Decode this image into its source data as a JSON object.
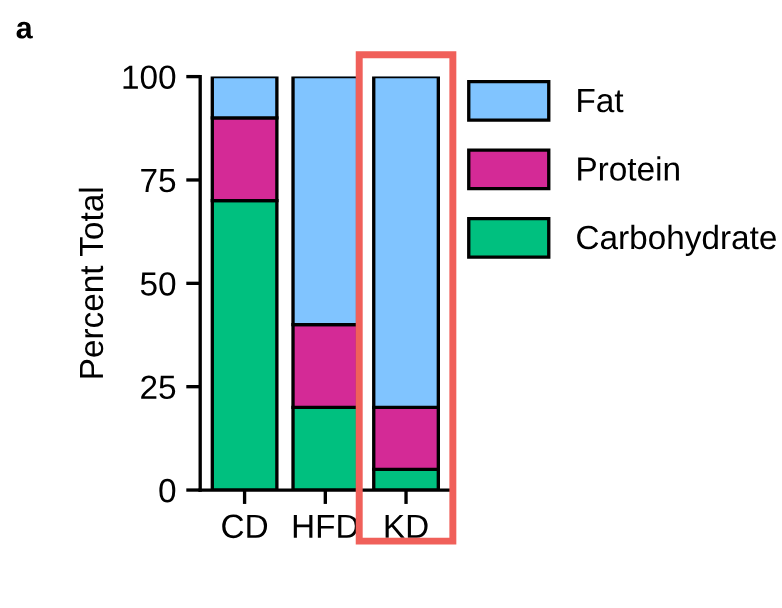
{
  "chart_data": {
    "type": "bar",
    "stacked": true,
    "ylabel": "Percent Total",
    "annotations": [
      "a"
    ],
    "categories": [
      "CD",
      "HFD",
      "KD"
    ],
    "series": [
      {
        "name": "Carbohydrate",
        "color": "#00c07f",
        "values": [
          70,
          20,
          5
        ]
      },
      {
        "name": "Protein",
        "color": "#d42a96",
        "values": [
          20,
          20,
          15
        ]
      },
      {
        "name": "Fat",
        "color": "#80c4ff",
        "values": [
          10,
          60,
          80
        ]
      }
    ],
    "ylim": [
      0,
      100
    ],
    "yticks": [
      0,
      25,
      50,
      75,
      100
    ],
    "grid": false,
    "legend": "right"
  }
}
